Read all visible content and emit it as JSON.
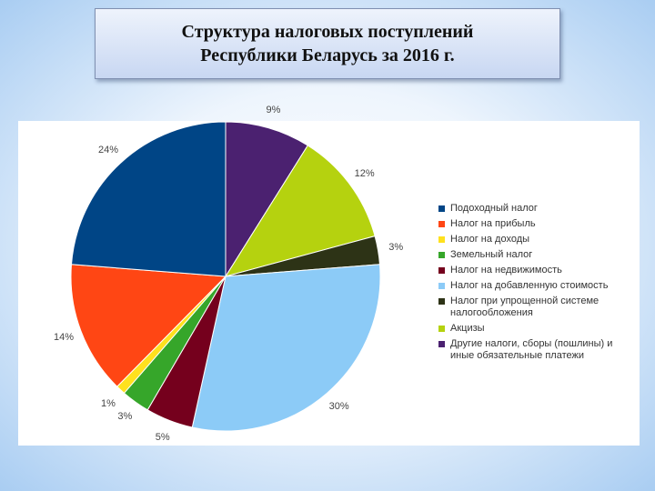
{
  "slide": {
    "title_line1": "Структура налоговых поступлений",
    "title_line2": "Республики Беларусь за 2016 г."
  },
  "chart_data": {
    "type": "pie",
    "title": "Структура налоговых поступлений Республики Беларусь за 2016 г.",
    "legend_position": "right",
    "slices": [
      {
        "name": "Другие налоги, сборы (пошлины) и иные обязательные платежи",
        "value": 9,
        "label": "9%",
        "color": "#4b2170"
      },
      {
        "name": "Акцизы",
        "value": 12,
        "label": "12%",
        "color": "#b5d20f"
      },
      {
        "name": "Налог при упрощенной системе налогообложения",
        "value": 3,
        "label": "3%",
        "color": "#2d3316"
      },
      {
        "name": "Налог на добавленную стоимость",
        "value": 30,
        "label": "30%",
        "color": "#8ccbf7"
      },
      {
        "name": "Налог на недвижимость",
        "value": 5,
        "label": "5%",
        "color": "#75001d"
      },
      {
        "name": "Земельный налог",
        "value": 3,
        "label": "3%",
        "color": "#36a62a"
      },
      {
        "name": "Налог на доходы",
        "value": 1,
        "label": "1%",
        "color": "#ffe11e"
      },
      {
        "name": "Налог на прибыль",
        "value": 14,
        "label": "14%",
        "color": "#ff4614"
      },
      {
        "name": "Подоходный налог",
        "value": 24,
        "label": "24%",
        "color": "#004586"
      }
    ],
    "legend": [
      {
        "name": "Подоходный налог",
        "color": "#004586"
      },
      {
        "name": "Налог на прибыль",
        "color": "#ff4614"
      },
      {
        "name": "Налог на доходы",
        "color": "#ffe11e"
      },
      {
        "name": "Земельный налог",
        "color": "#36a62a"
      },
      {
        "name": "Налог на недвижимость",
        "color": "#75001d"
      },
      {
        "name": "Налог на добавленную стоимость",
        "color": "#8ccbf7"
      },
      {
        "name": "Налог при упрощенной системе налогообложения",
        "color": "#2d3316"
      },
      {
        "name": "Акцизы",
        "color": "#b5d20f"
      },
      {
        "name": "Другие налоги, сборы (пошлины) и иные обязательные платежи",
        "color": "#4b2170"
      }
    ]
  }
}
